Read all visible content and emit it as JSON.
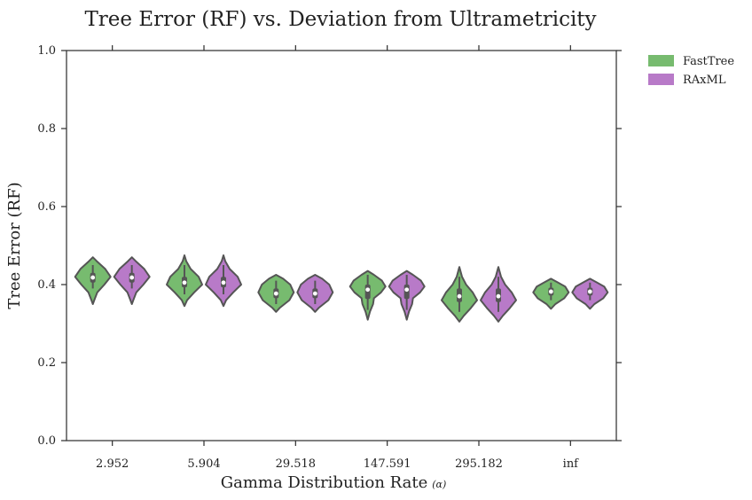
{
  "chart_data": {
    "type": "violin",
    "title": "Tree Error (RF) vs. Deviation from Ultrametricity",
    "xlabel": "Gamma Distribution Rate",
    "xlabel_symbol": "(α)",
    "ylabel": "Tree Error (RF)",
    "categories": [
      "2.952",
      "5.904",
      "29.518",
      "147.591",
      "295.182",
      "inf"
    ],
    "ylim": [
      0.0,
      1.0
    ],
    "yticks": [
      "0.0",
      "0.2",
      "0.4",
      "0.6",
      "0.8",
      "1.0"
    ],
    "grid": false,
    "legend_position": "outside-top-right",
    "series": [
      {
        "name": "FastTree",
        "color": "#77bb6f",
        "violins": [
          {
            "min": 0.35,
            "max": 0.47,
            "q1": 0.405,
            "median": 0.418,
            "q3": 0.43,
            "whisker_low": 0.39,
            "whisker_high": 0.45,
            "profile": [
              [
                0.35,
                0.0
              ],
              [
                0.36,
                0.08
              ],
              [
                0.38,
                0.25
              ],
              [
                0.4,
                0.65
              ],
              [
                0.42,
                1.0
              ],
              [
                0.44,
                0.7
              ],
              [
                0.46,
                0.22
              ],
              [
                0.47,
                0.0
              ]
            ]
          },
          {
            "min": 0.345,
            "max": 0.475,
            "q1": 0.393,
            "median": 0.405,
            "q3": 0.42,
            "whisker_low": 0.375,
            "whisker_high": 0.45,
            "profile": [
              [
                0.345,
                0.0
              ],
              [
                0.36,
                0.15
              ],
              [
                0.38,
                0.55
              ],
              [
                0.4,
                1.0
              ],
              [
                0.42,
                0.8
              ],
              [
                0.44,
                0.35
              ],
              [
                0.46,
                0.1
              ],
              [
                0.475,
                0.0
              ]
            ]
          },
          {
            "min": 0.33,
            "max": 0.425,
            "q1": 0.365,
            "median": 0.377,
            "q3": 0.39,
            "whisker_low": 0.35,
            "whisker_high": 0.41,
            "profile": [
              [
                0.33,
                0.0
              ],
              [
                0.34,
                0.2
              ],
              [
                0.36,
                0.75
              ],
              [
                0.38,
                1.0
              ],
              [
                0.4,
                0.8
              ],
              [
                0.415,
                0.4
              ],
              [
                0.425,
                0.0
              ]
            ]
          },
          {
            "min": 0.31,
            "max": 0.435,
            "q1": 0.363,
            "median": 0.387,
            "q3": 0.4,
            "whisker_low": 0.335,
            "whisker_high": 0.425,
            "profile": [
              [
                0.31,
                0.0
              ],
              [
                0.33,
                0.12
              ],
              [
                0.35,
                0.3
              ],
              [
                0.365,
                0.35
              ],
              [
                0.38,
                0.75
              ],
              [
                0.395,
                1.0
              ],
              [
                0.41,
                0.8
              ],
              [
                0.425,
                0.35
              ],
              [
                0.435,
                0.0
              ]
            ]
          },
          {
            "min": 0.305,
            "max": 0.445,
            "q1": 0.355,
            "median": 0.37,
            "q3": 0.39,
            "whisker_low": 0.33,
            "whisker_high": 0.42,
            "profile": [
              [
                0.305,
                0.0
              ],
              [
                0.32,
                0.25
              ],
              [
                0.34,
                0.65
              ],
              [
                0.36,
                1.0
              ],
              [
                0.38,
                0.75
              ],
              [
                0.4,
                0.38
              ],
              [
                0.42,
                0.15
              ],
              [
                0.445,
                0.0
              ]
            ]
          },
          {
            "min": 0.338,
            "max": 0.415,
            "q1": 0.372,
            "median": 0.382,
            "q3": 0.392,
            "whisker_low": 0.36,
            "whisker_high": 0.405,
            "profile": [
              [
                0.338,
                0.0
              ],
              [
                0.35,
                0.25
              ],
              [
                0.365,
                0.75
              ],
              [
                0.38,
                1.0
              ],
              [
                0.395,
                0.8
              ],
              [
                0.405,
                0.4
              ],
              [
                0.415,
                0.0
              ]
            ]
          }
        ]
      },
      {
        "name": "RAxML",
        "color": "#b87ac8",
        "violins": [
          {
            "min": 0.35,
            "max": 0.47,
            "q1": 0.405,
            "median": 0.418,
            "q3": 0.43,
            "whisker_low": 0.39,
            "whisker_high": 0.45,
            "profile": [
              [
                0.35,
                0.0
              ],
              [
                0.36,
                0.08
              ],
              [
                0.38,
                0.25
              ],
              [
                0.4,
                0.65
              ],
              [
                0.42,
                1.0
              ],
              [
                0.44,
                0.7
              ],
              [
                0.46,
                0.22
              ],
              [
                0.47,
                0.0
              ]
            ]
          },
          {
            "min": 0.345,
            "max": 0.475,
            "q1": 0.393,
            "median": 0.405,
            "q3": 0.42,
            "whisker_low": 0.375,
            "whisker_high": 0.45,
            "profile": [
              [
                0.345,
                0.0
              ],
              [
                0.36,
                0.15
              ],
              [
                0.38,
                0.55
              ],
              [
                0.4,
                1.0
              ],
              [
                0.42,
                0.8
              ],
              [
                0.44,
                0.35
              ],
              [
                0.46,
                0.1
              ],
              [
                0.475,
                0.0
              ]
            ]
          },
          {
            "min": 0.33,
            "max": 0.425,
            "q1": 0.365,
            "median": 0.377,
            "q3": 0.39,
            "whisker_low": 0.35,
            "whisker_high": 0.41,
            "profile": [
              [
                0.33,
                0.0
              ],
              [
                0.34,
                0.2
              ],
              [
                0.36,
                0.75
              ],
              [
                0.38,
                1.0
              ],
              [
                0.4,
                0.8
              ],
              [
                0.415,
                0.4
              ],
              [
                0.425,
                0.0
              ]
            ]
          },
          {
            "min": 0.31,
            "max": 0.435,
            "q1": 0.363,
            "median": 0.387,
            "q3": 0.4,
            "whisker_low": 0.335,
            "whisker_high": 0.425,
            "profile": [
              [
                0.31,
                0.0
              ],
              [
                0.33,
                0.12
              ],
              [
                0.35,
                0.3
              ],
              [
                0.365,
                0.35
              ],
              [
                0.38,
                0.75
              ],
              [
                0.395,
                1.0
              ],
              [
                0.41,
                0.8
              ],
              [
                0.425,
                0.35
              ],
              [
                0.435,
                0.0
              ]
            ]
          },
          {
            "min": 0.305,
            "max": 0.445,
            "q1": 0.355,
            "median": 0.37,
            "q3": 0.39,
            "whisker_low": 0.33,
            "whisker_high": 0.42,
            "profile": [
              [
                0.305,
                0.0
              ],
              [
                0.32,
                0.25
              ],
              [
                0.34,
                0.65
              ],
              [
                0.36,
                1.0
              ],
              [
                0.38,
                0.75
              ],
              [
                0.4,
                0.38
              ],
              [
                0.42,
                0.15
              ],
              [
                0.445,
                0.0
              ]
            ]
          },
          {
            "min": 0.338,
            "max": 0.415,
            "q1": 0.372,
            "median": 0.382,
            "q3": 0.392,
            "whisker_low": 0.36,
            "whisker_high": 0.405,
            "profile": [
              [
                0.338,
                0.0
              ],
              [
                0.35,
                0.25
              ],
              [
                0.365,
                0.75
              ],
              [
                0.38,
                1.0
              ],
              [
                0.395,
                0.8
              ],
              [
                0.405,
                0.4
              ],
              [
                0.415,
                0.0
              ]
            ]
          }
        ]
      }
    ]
  }
}
